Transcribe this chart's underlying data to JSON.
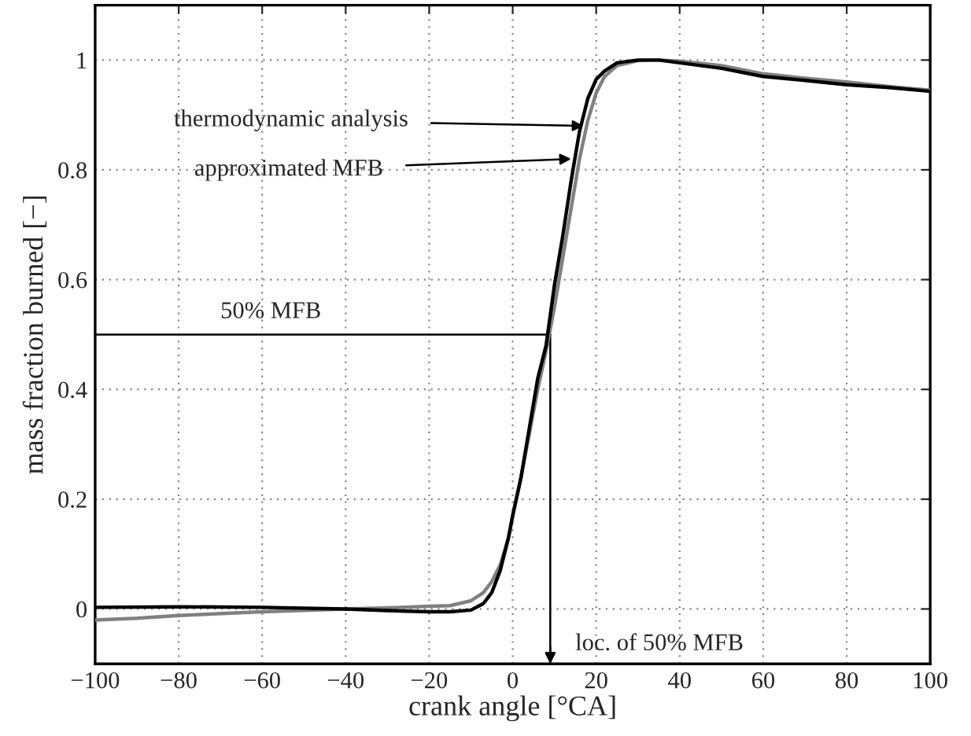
{
  "chart_data": {
    "type": "line",
    "xlabel": "crank angle [°CA]",
    "ylabel": "mass fraction burned [−]",
    "series": [
      {
        "color": "#000000",
        "x": [
          -100,
          -80,
          -60,
          -40,
          -30,
          -20,
          -15,
          -10,
          -7,
          -5,
          -3,
          -1,
          0,
          2,
          4,
          6,
          8,
          10,
          12,
          14,
          16,
          18,
          20,
          22,
          25,
          30,
          35,
          40,
          50,
          60,
          70,
          80,
          90,
          100
        ],
        "values": [
          0.003,
          0.004,
          0.003,
          0.0,
          -0.003,
          -0.005,
          -0.005,
          -0.002,
          0.01,
          0.03,
          0.07,
          0.13,
          0.17,
          0.24,
          0.33,
          0.42,
          0.48,
          0.59,
          0.68,
          0.78,
          0.87,
          0.93,
          0.965,
          0.98,
          0.995,
          1.0,
          1.0,
          0.995,
          0.985,
          0.97,
          0.963,
          0.955,
          0.95,
          0.943
        ]
      },
      {
        "color": "#808080",
        "x": [
          -100,
          -90,
          -80,
          -60,
          -40,
          -30,
          -20,
          -15,
          -10,
          -7,
          -5,
          -3,
          -1,
          0,
          2,
          4,
          6,
          8,
          10,
          12,
          14,
          16,
          18,
          20,
          22,
          25,
          30,
          35,
          40,
          50,
          60,
          70,
          80,
          90,
          100
        ],
        "values": [
          -0.02,
          -0.017,
          -0.012,
          -0.005,
          0.0,
          0.002,
          0.005,
          0.006,
          0.015,
          0.03,
          0.05,
          0.08,
          0.13,
          0.17,
          0.24,
          0.32,
          0.4,
          0.47,
          0.55,
          0.64,
          0.73,
          0.82,
          0.89,
          0.94,
          0.97,
          0.99,
          0.999,
          1.0,
          0.998,
          0.99,
          0.975,
          0.967,
          0.96,
          0.952,
          0.945
        ]
      }
    ],
    "annotations": [
      {
        "text": "thermodynamic analysis",
        "x": 17,
        "y": 0.88
      },
      {
        "text": "approximated MFB",
        "x": 14,
        "y": 0.82
      }
    ],
    "ref_lines": [
      {
        "axis": "y",
        "value": 0.5,
        "label": "50% MFB"
      },
      {
        "axis": "x",
        "value": 9,
        "label": "loc. of 50% MFB"
      }
    ],
    "xlim": [
      -100,
      100
    ],
    "ylim": [
      -0.1,
      1.1
    ],
    "xticks": [
      {
        "value": -100,
        "label": "−100"
      },
      {
        "value": -80,
        "label": "−80"
      },
      {
        "value": -60,
        "label": "−60"
      },
      {
        "value": -40,
        "label": "−40"
      },
      {
        "value": -20,
        "label": "−20"
      },
      0,
      20,
      40,
      60,
      80,
      100
    ],
    "yticks": [
      0,
      0.2,
      0.4,
      0.6,
      0.8,
      1
    ],
    "grid": true,
    "marker": "none",
    "line_style": "solid"
  }
}
